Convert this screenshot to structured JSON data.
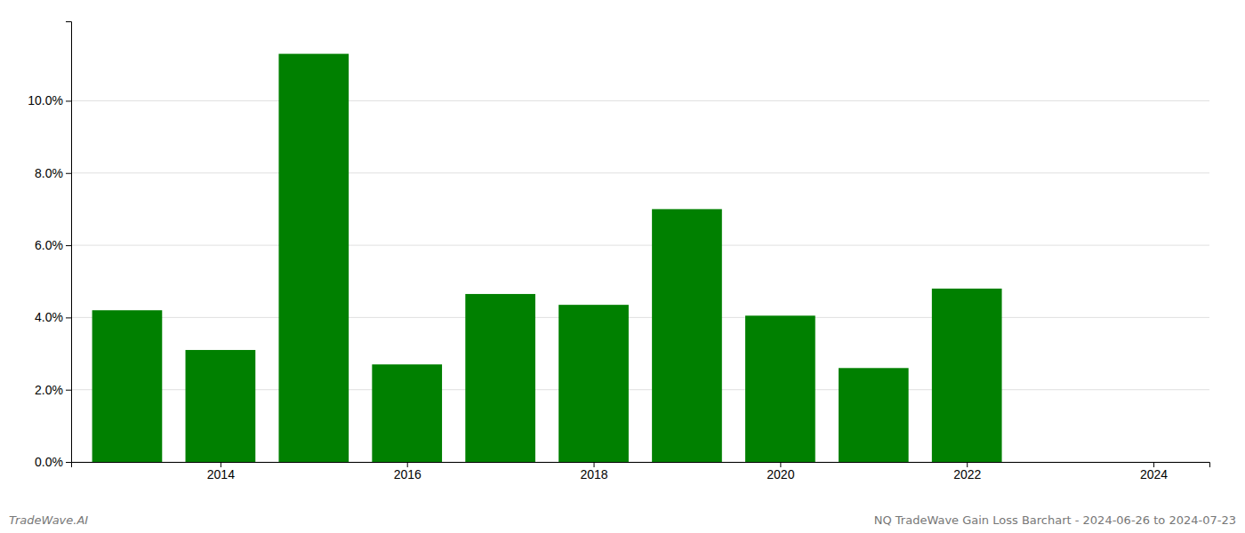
{
  "chart_data": {
    "type": "bar",
    "x": [
      2013,
      2014,
      2015,
      2016,
      2017,
      2018,
      2019,
      2020,
      2021,
      2022,
      2023
    ],
    "values": [
      0.042,
      0.031,
      0.113,
      0.027,
      0.0465,
      0.0435,
      0.07,
      0.0405,
      0.026,
      0.048,
      0.0
    ],
    "color": "#008000",
    "xlim": [
      2012.4,
      2024.6
    ],
    "xticks": [
      2014,
      2016,
      2018,
      2020,
      2022,
      2024
    ],
    "ylim": [
      0.0,
      0.122
    ],
    "yticks": [
      {
        "value": 0.0,
        "label": "0.0%"
      },
      {
        "value": 0.02,
        "label": "2.0%"
      },
      {
        "value": 0.04,
        "label": "4.0%"
      },
      {
        "value": 0.06,
        "label": "6.0%"
      },
      {
        "value": 0.08,
        "label": "8.0%"
      },
      {
        "value": 0.1,
        "label": "10.0%"
      }
    ],
    "grid": true,
    "annotations": [
      "TradeWave.AI",
      "NQ TradeWave Gain Loss Barchart - 2024-06-26 to 2024-07-23"
    ]
  }
}
